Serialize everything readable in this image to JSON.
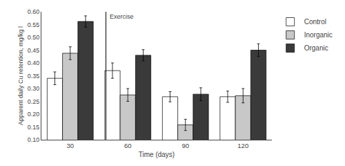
{
  "chart_data": {
    "type": "bar",
    "xlabel": "Time (days)",
    "ylabel": "Apparent daily Cu retention, mg/kg l",
    "categories": [
      "30",
      "60",
      "90",
      "120"
    ],
    "series": [
      {
        "name": "Control",
        "color": "white",
        "values": [
          0.34,
          0.37,
          0.268,
          0.268
        ],
        "errors": [
          0.025,
          0.03,
          0.02,
          0.022
        ]
      },
      {
        "name": "Inorganic",
        "color": "#c8c8c8",
        "values": [
          0.438,
          0.275,
          0.158,
          0.272
        ],
        "errors": [
          0.025,
          0.025,
          0.022,
          0.028
        ]
      },
      {
        "name": "Organic",
        "color": "#3a3a3a",
        "values": [
          0.562,
          0.43,
          0.278,
          0.45
        ],
        "errors": [
          0.022,
          0.022,
          0.025,
          0.025
        ]
      }
    ],
    "ylim": [
      0.1,
      0.6
    ],
    "yticks": [
      {
        "value": 0.1,
        "label": "0.10"
      },
      0.15,
      {
        "value": 0.2,
        "label": "0.20"
      },
      0.25,
      {
        "value": 0.3,
        "label": "0.30"
      },
      0.35,
      {
        "value": 0.4,
        "label": "0.40"
      },
      0.45,
      {
        "value": 0.5,
        "label": "0.50"
      },
      0.55,
      {
        "value": 0.6,
        "label": "0.60"
      }
    ],
    "annotations": [
      {
        "text": "Exercise"
      }
    ],
    "grid": false,
    "legend": "upper right"
  }
}
